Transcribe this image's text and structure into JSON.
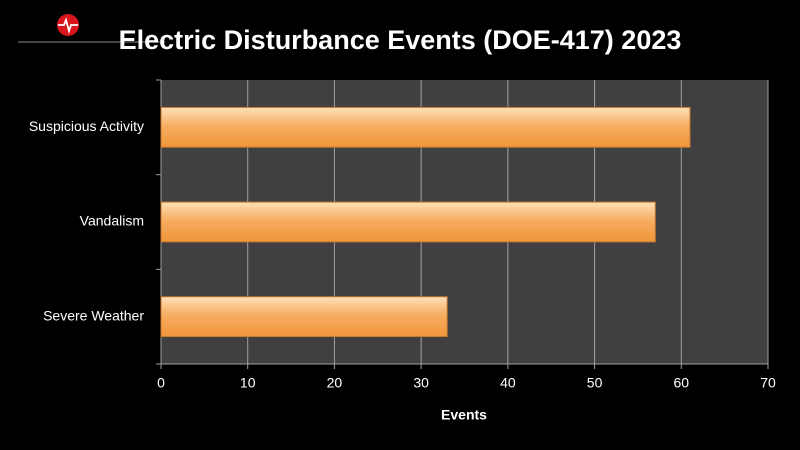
{
  "chart_data": {
    "type": "bar",
    "orientation": "horizontal",
    "title": "Electric Disturbance Events (DOE-417) 2023",
    "categories": [
      "Suspicious Activity",
      "Vandalism",
      "Severe Weather"
    ],
    "values": [
      61,
      57,
      33
    ],
    "color": "#f5a85a",
    "xlabel": "Events",
    "xlim": [
      0,
      70
    ],
    "xticks": [
      0,
      10,
      20,
      30,
      40,
      50,
      60,
      70
    ],
    "grid": true
  }
}
